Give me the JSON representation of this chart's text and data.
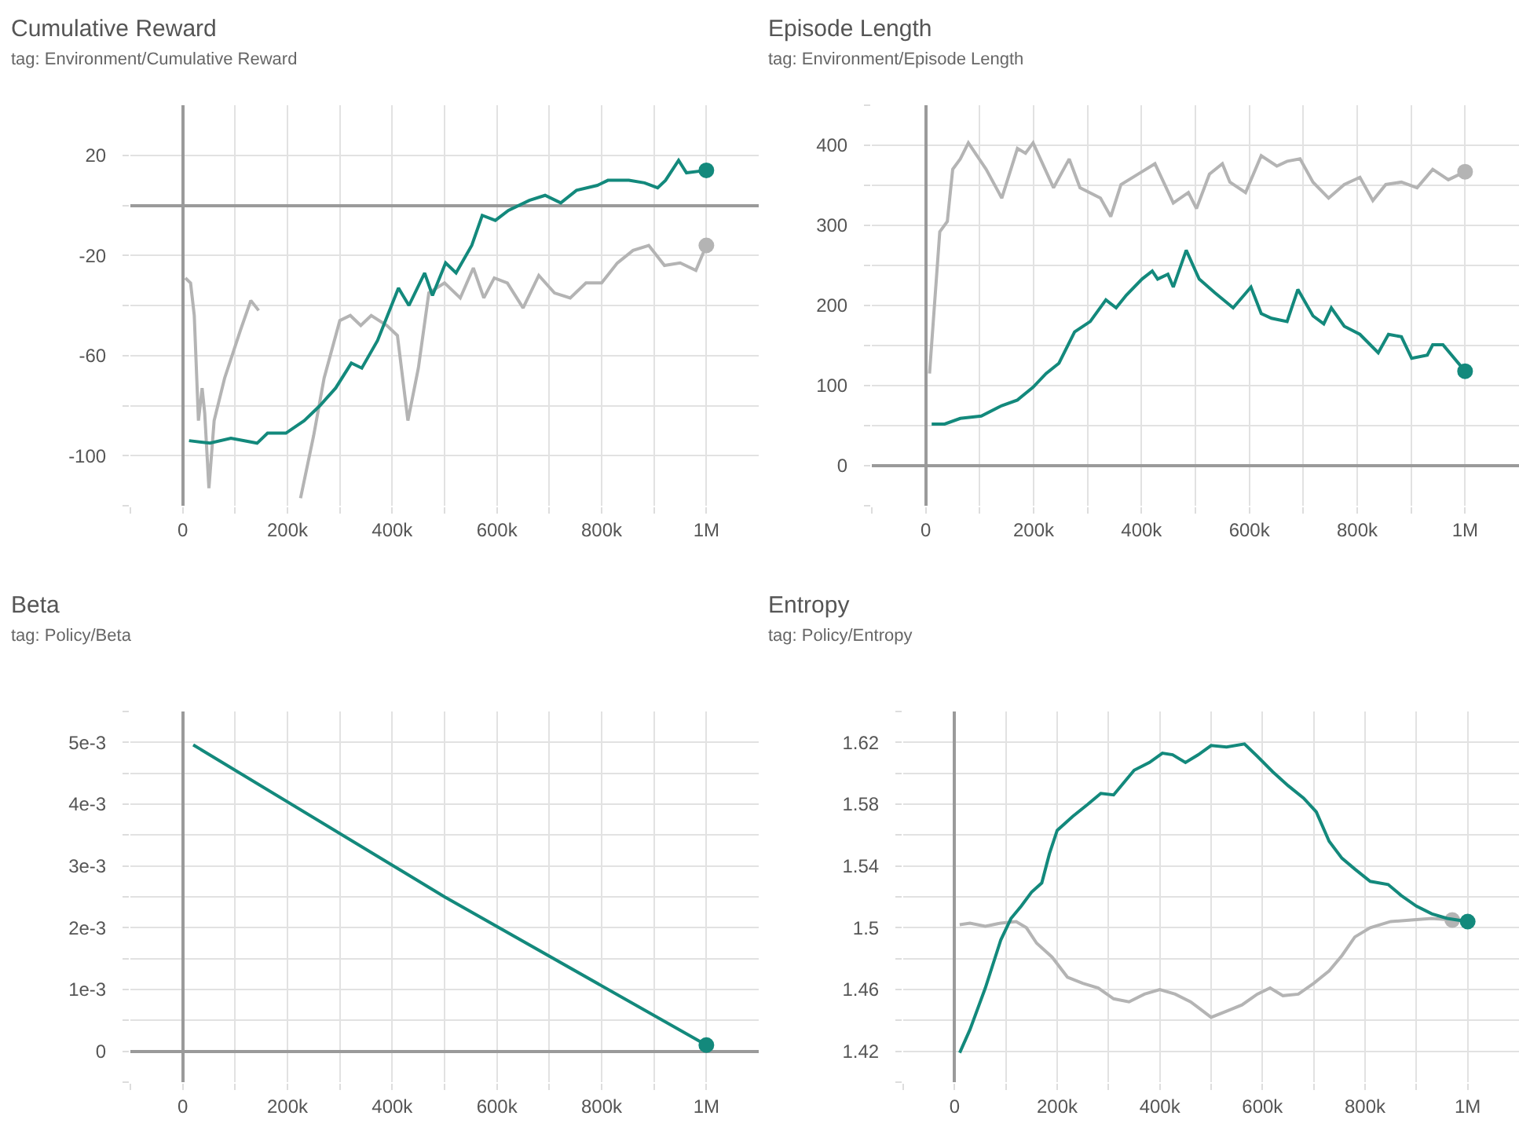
{
  "chart_data": [
    {
      "type": "line",
      "title": "Cumulative Reward",
      "subtitle": "tag: Environment/Cumulative Reward",
      "grid": true,
      "xlim": [
        -100000,
        1100000
      ],
      "xticks": [
        {
          "value": -100000,
          "label": null
        },
        {
          "value": 0,
          "label": "0"
        },
        {
          "value": 100000,
          "label": null
        },
        {
          "value": 200000,
          "label": "200k"
        },
        {
          "value": 300000,
          "label": null
        },
        {
          "value": 400000,
          "label": "400k"
        },
        {
          "value": 500000,
          "label": null
        },
        {
          "value": 600000,
          "label": "600k"
        },
        {
          "value": 700000,
          "label": null
        },
        {
          "value": 800000,
          "label": "800k"
        },
        {
          "value": 900000,
          "label": null
        },
        {
          "value": 1000000,
          "label": "1M"
        }
      ],
      "ylim": [
        -120,
        40
      ],
      "yticks": [
        {
          "value": -120,
          "label": null
        },
        -100,
        {
          "value": -80,
          "label": null
        },
        -60,
        {
          "value": -40,
          "label": null
        },
        -20,
        {
          "value": 0,
          "label": null
        },
        20
      ],
      "series": [
        {
          "color": "#b4b4b4",
          "x": [
            5000,
            15000,
            22000,
            30000,
            37000,
            42000,
            50000,
            60000,
            80000,
            110000,
            130000,
            145000,
            160000,
            185000,
            225000,
            250000,
            270000,
            300000,
            320000,
            340000,
            360000,
            390000,
            410000,
            430000,
            450000,
            470000,
            500000,
            530000,
            555000,
            575000,
            595000,
            620000,
            650000,
            680000,
            710000,
            740000,
            770000,
            800000,
            830000,
            860000,
            890000,
            920000,
            950000,
            980000,
            1000000
          ],
          "values": [
            -29,
            -31,
            -44,
            -86,
            -73,
            -83,
            -113,
            -86,
            -69,
            -50,
            -38,
            -42,
            null,
            null,
            -117,
            -92,
            -69,
            -46,
            -44,
            -48,
            -44,
            -48,
            -52,
            -86,
            -65,
            -35,
            -31,
            -37,
            -25,
            -37,
            -29,
            -31,
            -41,
            -28,
            -35,
            -37,
            -31,
            -31,
            -23,
            -18,
            -16,
            -24,
            -23,
            -26,
            -16
          ]
        },
        {
          "color": "#13897c",
          "x": [
            12000,
            52000,
            92000,
            142000,
            162000,
            197000,
            232000,
            262000,
            292000,
            322000,
            342000,
            372000,
            412000,
            432000,
            462000,
            477000,
            502000,
            522000,
            552000,
            572000,
            597000,
            622000,
            662000,
            692000,
            722000,
            752000,
            792000,
            812000,
            852000,
            882000,
            907000,
            922000,
            947000,
            962000,
            1000000
          ],
          "values": [
            -94,
            -95,
            -93,
            -95,
            -91,
            -91,
            -86,
            -80,
            -73,
            -63,
            -65,
            -54,
            -33,
            -40,
            -27,
            -36,
            -23,
            -27,
            -16,
            -4,
            -6,
            -2,
            2,
            4,
            1,
            6,
            8,
            10,
            10,
            9,
            7,
            10,
            18,
            13,
            14
          ]
        }
      ]
    },
    {
      "type": "line",
      "title": "Episode Length",
      "subtitle": "tag: Environment/Episode Length",
      "grid": true,
      "xlim": [
        -100000,
        1100000
      ],
      "xticks": [
        {
          "value": -100000,
          "label": null
        },
        {
          "value": 0,
          "label": "0"
        },
        {
          "value": 100000,
          "label": null
        },
        {
          "value": 200000,
          "label": "200k"
        },
        {
          "value": 300000,
          "label": null
        },
        {
          "value": 400000,
          "label": "400k"
        },
        {
          "value": 500000,
          "label": null
        },
        {
          "value": 600000,
          "label": "600k"
        },
        {
          "value": 700000,
          "label": null
        },
        {
          "value": 800000,
          "label": "800k"
        },
        {
          "value": 900000,
          "label": null
        },
        {
          "value": 1000000,
          "label": "1M"
        }
      ],
      "ylim": [
        -50,
        450
      ],
      "yticks": [
        {
          "value": -50,
          "label": null
        },
        0,
        {
          "value": 50,
          "label": null
        },
        100,
        {
          "value": 150,
          "label": null
        },
        200,
        {
          "value": 250,
          "label": null
        },
        300,
        {
          "value": 350,
          "label": null
        },
        400,
        {
          "value": 450,
          "label": null
        }
      ],
      "series": [
        {
          "color": "#b4b4b4",
          "x": [
            7000,
            26000,
            40000,
            50000,
            64000,
            79000,
            112000,
            141000,
            170000,
            185000,
            199000,
            237000,
            266000,
            286000,
            324000,
            343000,
            362000,
            401000,
            425000,
            459000,
            487000,
            502000,
            526000,
            550000,
            564000,
            593000,
            622000,
            651000,
            670000,
            694000,
            718000,
            747000,
            776000,
            805000,
            829000,
            853000,
            882000,
            911000,
            940000,
            969000,
            1000000
          ],
          "values": [
            115,
            292,
            305,
            370,
            383,
            403,
            370,
            334,
            396,
            390,
            403,
            347,
            383,
            347,
            334,
            311,
            351,
            367,
            377,
            328,
            341,
            321,
            364,
            377,
            354,
            341,
            387,
            374,
            380,
            383,
            354,
            334,
            351,
            360,
            331,
            351,
            354,
            347,
            370,
            357,
            367
          ]
        },
        {
          "color": "#13897c",
          "x": [
            11000,
            35000,
            64000,
            103000,
            141000,
            170000,
            199000,
            223000,
            247000,
            276000,
            305000,
            334000,
            353000,
            372000,
            401000,
            420000,
            430000,
            449000,
            459000,
            483000,
            507000,
            536000,
            570000,
            603000,
            622000,
            641000,
            670000,
            690000,
            718000,
            738000,
            752000,
            776000,
            805000,
            839000,
            858000,
            882000,
            901000,
            930000,
            940000,
            959000,
            1000000
          ],
          "values": [
            52,
            52,
            59,
            62,
            75,
            82,
            98,
            115,
            128,
            167,
            180,
            207,
            197,
            213,
            233,
            243,
            233,
            239,
            223,
            269,
            233,
            216,
            197,
            223,
            190,
            184,
            180,
            220,
            187,
            177,
            197,
            174,
            164,
            141,
            164,
            161,
            134,
            138,
            151,
            151,
            118
          ]
        }
      ]
    },
    {
      "type": "line",
      "title": "Beta",
      "subtitle": "tag: Policy/Beta",
      "grid": true,
      "xlim": [
        -100000,
        1100000
      ],
      "xticks": [
        {
          "value": -100000,
          "label": null
        },
        {
          "value": 0,
          "label": "0"
        },
        {
          "value": 100000,
          "label": null
        },
        {
          "value": 200000,
          "label": "200k"
        },
        {
          "value": 300000,
          "label": null
        },
        {
          "value": 400000,
          "label": "400k"
        },
        {
          "value": 500000,
          "label": null
        },
        {
          "value": 600000,
          "label": "600k"
        },
        {
          "value": 700000,
          "label": null
        },
        {
          "value": 800000,
          "label": "800k"
        },
        {
          "value": 900000,
          "label": null
        },
        {
          "value": 1000000,
          "label": "1M"
        }
      ],
      "ylim": [
        -0.0005,
        0.0055
      ],
      "yticks": [
        {
          "value": -0.0005,
          "label": null
        },
        {
          "value": 0,
          "label": "0"
        },
        {
          "value": 0.0005,
          "label": null
        },
        {
          "value": 0.001,
          "label": "1e-3"
        },
        {
          "value": 0.0015,
          "label": null
        },
        {
          "value": 0.002,
          "label": "2e-3"
        },
        {
          "value": 0.0025,
          "label": null
        },
        {
          "value": 0.003,
          "label": "3e-3"
        },
        {
          "value": 0.0035,
          "label": null
        },
        {
          "value": 0.004,
          "label": "4e-3"
        },
        {
          "value": 0.0045,
          "label": null
        },
        {
          "value": 0.005,
          "label": "5e-3"
        },
        {
          "value": 0.0055,
          "label": null
        }
      ],
      "series": [
        {
          "color": "#13897c",
          "x": [
            20000,
            500000,
            1000000
          ],
          "values": [
            0.00496,
            0.0025,
            0.0001
          ]
        }
      ]
    },
    {
      "type": "line",
      "title": "Entropy",
      "subtitle": "tag: Policy/Entropy",
      "grid": true,
      "xlim": [
        -100000,
        1100000
      ],
      "xticks": [
        {
          "value": -100000,
          "label": null
        },
        {
          "value": 0,
          "label": "0"
        },
        {
          "value": 100000,
          "label": null
        },
        {
          "value": 200000,
          "label": "200k"
        },
        {
          "value": 300000,
          "label": null
        },
        {
          "value": 400000,
          "label": "400k"
        },
        {
          "value": 500000,
          "label": null
        },
        {
          "value": 600000,
          "label": "600k"
        },
        {
          "value": 700000,
          "label": null
        },
        {
          "value": 800000,
          "label": "800k"
        },
        {
          "value": 900000,
          "label": null
        },
        {
          "value": 1000000,
          "label": "1M"
        }
      ],
      "ylim": [
        1.4,
        1.64
      ],
      "yticks": [
        {
          "value": 1.4,
          "label": null
        },
        1.42,
        {
          "value": 1.44,
          "label": null
        },
        1.46,
        {
          "value": 1.48,
          "label": null
        },
        1.5,
        {
          "value": 1.52,
          "label": null
        },
        1.54,
        {
          "value": 1.56,
          "label": null
        },
        1.58,
        {
          "value": 1.6,
          "label": null
        },
        1.62,
        {
          "value": 1.64,
          "label": null
        }
      ],
      "series": [
        {
          "color": "#b4b4b4",
          "x": [
            10000,
            30000,
            60000,
            90000,
            120000,
            140000,
            160000,
            190000,
            220000,
            250000,
            280000,
            310000,
            340000,
            370000,
            400000,
            430000,
            460000,
            500000,
            530000,
            560000,
            590000,
            615000,
            640000,
            670000,
            700000,
            730000,
            755000,
            780000,
            810000,
            850000,
            890000,
            930000,
            970000
          ],
          "values": [
            1.502,
            1.503,
            1.501,
            1.503,
            1.504,
            1.5,
            1.49,
            1.481,
            1.468,
            1.464,
            1.461,
            1.454,
            1.452,
            1.457,
            1.46,
            1.457,
            1.452,
            1.442,
            1.446,
            1.45,
            1.457,
            1.461,
            1.456,
            1.457,
            1.464,
            1.472,
            1.482,
            1.494,
            1.5,
            1.504,
            1.505,
            1.506,
            1.505
          ]
        },
        {
          "color": "#13897c",
          "x": [
            10000,
            30000,
            60000,
            90000,
            110000,
            130000,
            150000,
            170000,
            185000,
            200000,
            230000,
            260000,
            285000,
            310000,
            330000,
            350000,
            380000,
            405000,
            425000,
            450000,
            475000,
            500000,
            530000,
            565000,
            590000,
            620000,
            650000,
            680000,
            705000,
            730000,
            755000,
            780000,
            810000,
            845000,
            870000,
            900000,
            930000,
            960000,
            1000000
          ],
          "values": [
            1.419,
            1.434,
            1.461,
            1.492,
            1.506,
            1.514,
            1.523,
            1.529,
            1.548,
            1.563,
            1.572,
            1.58,
            1.587,
            1.586,
            1.594,
            1.602,
            1.607,
            1.613,
            1.612,
            1.607,
            1.612,
            1.618,
            1.617,
            1.619,
            1.611,
            1.601,
            1.592,
            1.584,
            1.575,
            1.556,
            1.545,
            1.538,
            1.53,
            1.528,
            1.521,
            1.514,
            1.509,
            1.506,
            1.504
          ]
        }
      ]
    }
  ]
}
